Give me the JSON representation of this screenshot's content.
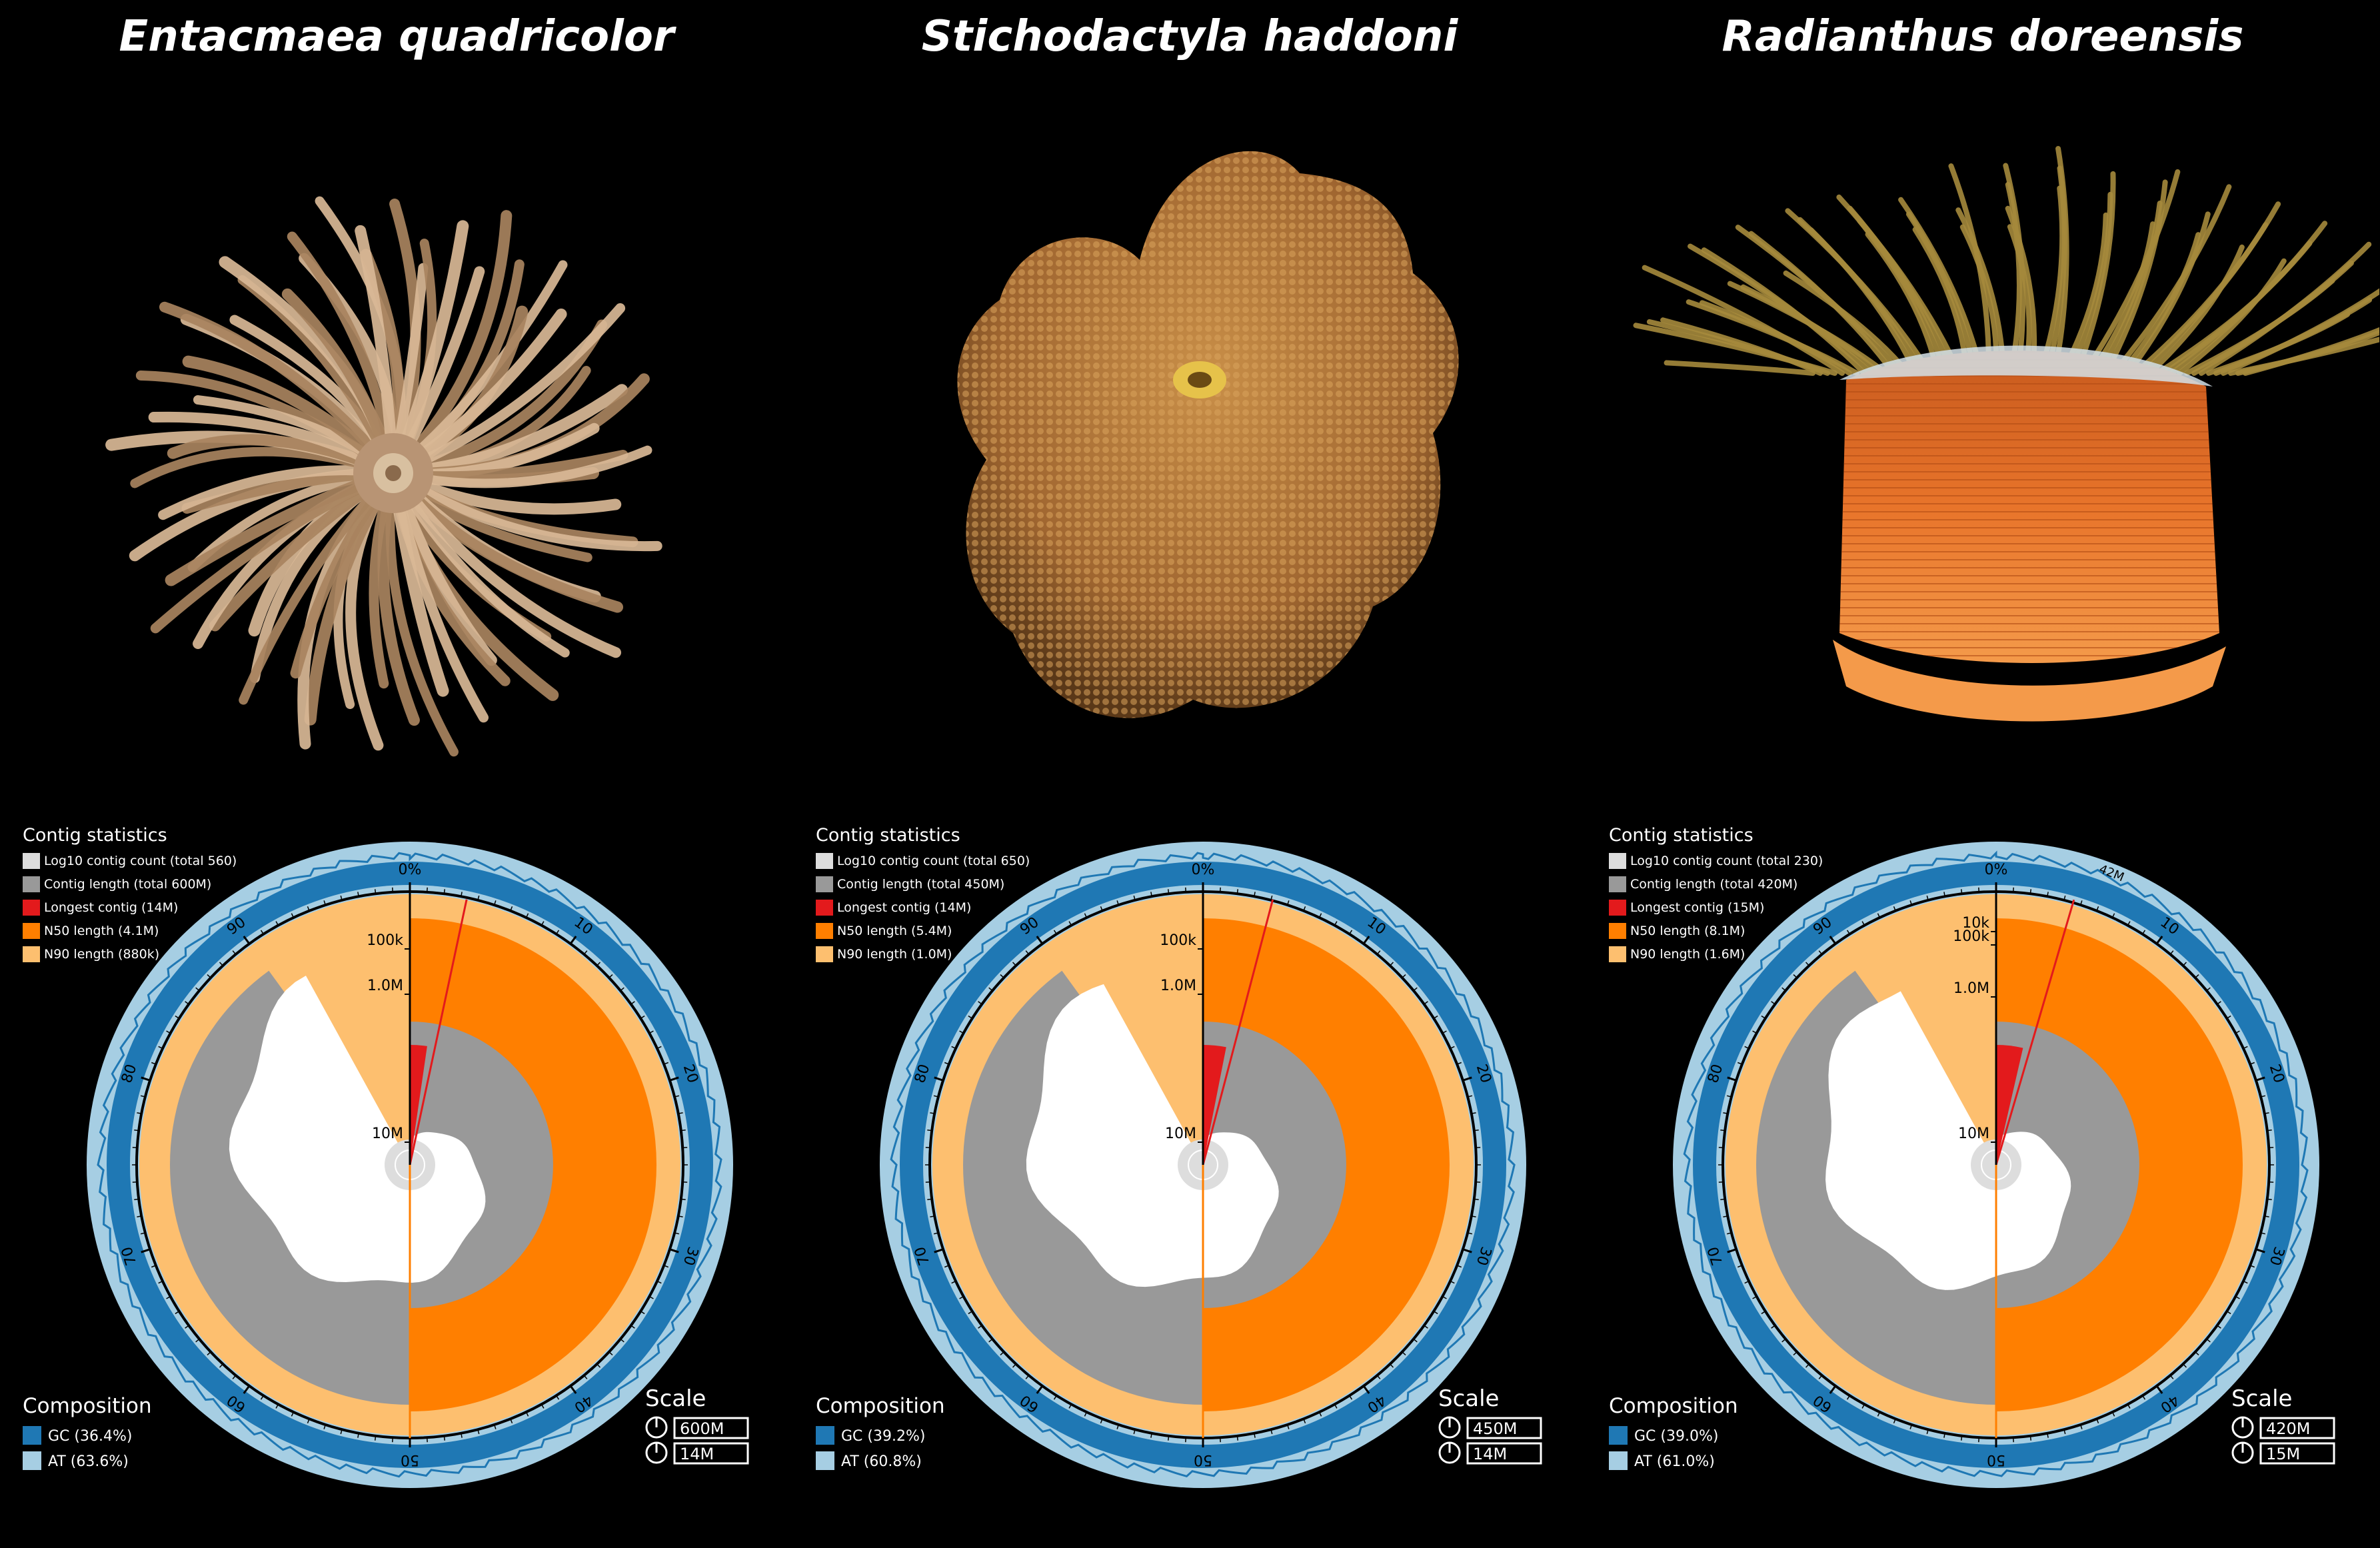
{
  "species": [
    {
      "name": "Entacmaea quadricolor",
      "photo_colors": {
        "body": "#c9a98a",
        "tentacle": "#d9b996",
        "accent": "#a8835e"
      },
      "contig_statistics": {
        "title": "Contig statistics",
        "log10_contig_count": "Log10 contig count (total 560)",
        "contig_length": "Contig length (total 600M)",
        "longest_contig": "Longest contig (14M)",
        "n50_length": "N50 length (4.1M)",
        "n90_length": "N90 length (880k)"
      },
      "composition": {
        "title": "Composition",
        "gc": "GC (36.4%)",
        "at": "AT (63.6%)"
      },
      "scale": {
        "title": "Scale",
        "outer": "600M",
        "inner": "14M"
      },
      "radial_labels": [
        "100k",
        "1.0M",
        "10M"
      ],
      "percent_ticks": [
        "0%",
        "10",
        "20",
        "30",
        "40",
        "50",
        "60",
        "70",
        "80",
        "90"
      ],
      "snail_shape": {
        "longest_frac": 0.023,
        "n50_frac": 0.5,
        "n90_frac": 0.9
      }
    },
    {
      "name": "Stichodactyla haddoni",
      "photo_colors": {
        "body": "#b97c3a",
        "tentacle": "#c98f48",
        "accent": "#e6c24a"
      },
      "contig_statistics": {
        "title": "Contig statistics",
        "log10_contig_count": "Log10 contig count (total 650)",
        "contig_length": "Contig length (total 450M)",
        "longest_contig": "Longest contig (14M)",
        "n50_length": "N50 length (5.4M)",
        "n90_length": "N90 length (1.0M)"
      },
      "composition": {
        "title": "Composition",
        "gc": "GC (39.2%)",
        "at": "AT (60.8%)"
      },
      "scale": {
        "title": "Scale",
        "outer": "450M",
        "inner": "14M"
      },
      "radial_labels": [
        "100k",
        "1.0M",
        "10M"
      ],
      "percent_ticks": [
        "0%",
        "10",
        "20",
        "30",
        "40",
        "50",
        "60",
        "70",
        "80",
        "90"
      ],
      "snail_shape": {
        "longest_frac": 0.031,
        "n50_frac": 0.5,
        "n90_frac": 0.9
      }
    },
    {
      "name": "Radianthus doreensis",
      "photo_colors": {
        "body": "#e8742a",
        "tentacle": "#a58a3c",
        "accent": "#d4e0e8"
      },
      "contig_statistics": {
        "title": "Contig statistics",
        "log10_contig_count": "Log10 contig count (total 230)",
        "contig_length": "Contig length (total 420M)",
        "longest_contig": "Longest contig (15M)",
        "n50_length": "N50 length (8.1M)",
        "n90_length": "N90 length (1.6M)"
      },
      "composition": {
        "title": "Composition",
        "gc": "GC (39.0%)",
        "at": "AT (61.0%)"
      },
      "scale": {
        "title": "Scale",
        "outer": "420M",
        "inner": "15M"
      },
      "radial_labels": [
        "10k",
        "100k",
        "1.0M",
        "10M"
      ],
      "percent_ticks": [
        "0%",
        "10",
        "20",
        "30",
        "40",
        "50",
        "60",
        "70",
        "80",
        "90"
      ],
      "extra_label": "42M",
      "snail_shape": {
        "longest_frac": 0.036,
        "n50_frac": 0.5,
        "n90_frac": 0.9
      }
    }
  ],
  "colors": {
    "background": "#000000",
    "log10_count": "#dddddd",
    "contig_length": "#999999",
    "longest": "#e31a1c",
    "n50": "#ff7f00",
    "n90": "#fdbf6f",
    "gc": "#1f78b4",
    "at": "#a6cee3"
  }
}
